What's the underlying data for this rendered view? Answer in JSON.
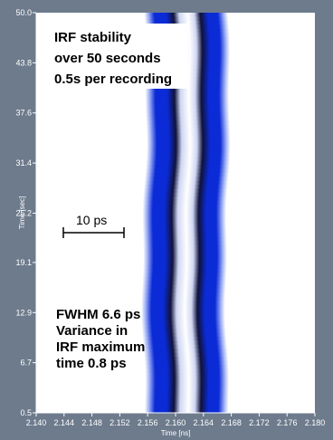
{
  "chart_data": {
    "type": "heatmap",
    "title": "",
    "xlabel": "Time [ns]",
    "ylabel": "Time [sec]",
    "xlim": [
      2.14,
      2.18
    ],
    "ylim": [
      0.5,
      50.0
    ],
    "x_ticks": [
      "2.140",
      "2.144",
      "2.148",
      "2.152",
      "2.156",
      "2.160",
      "2.164",
      "2.168",
      "2.172",
      "2.176",
      "2.180"
    ],
    "y_ticks": [
      "50.0",
      "43.8",
      "37.6",
      "31.4",
      "25.2",
      "19.1",
      "12.9",
      "6.7",
      "0.5"
    ],
    "y_tick_values": [
      50.0,
      43.8,
      37.6,
      31.4,
      25.2,
      19.1,
      12.9,
      6.7,
      0.5
    ],
    "colors": {
      "band": "#0b2bd6",
      "dark": "#10123a",
      "frame": "#6d7b8c",
      "background": "#ffffff"
    },
    "annotations": {
      "top_lines": [
        "IRF stability",
        "over 50 seconds",
        "0.5s per recording"
      ],
      "scale_bar": "10 ps",
      "bottom_lines": [
        "FWHM 6.6 ps",
        "Variance in",
        "IRF maximum",
        "time 0.8 ps"
      ]
    }
  }
}
